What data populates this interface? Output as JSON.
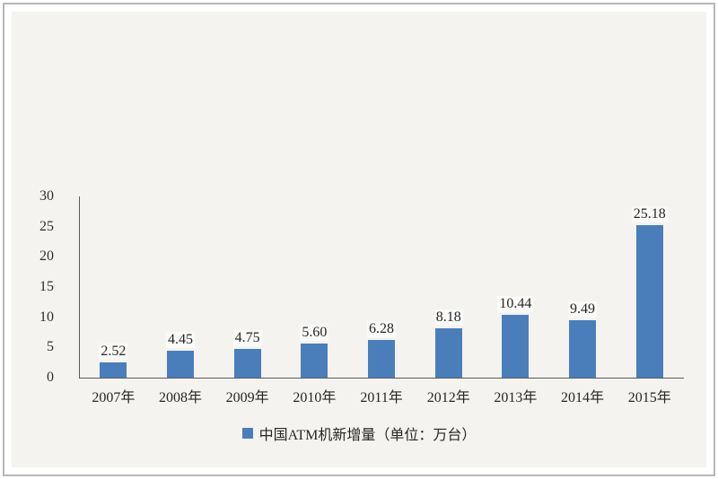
{
  "chart_data": {
    "type": "bar",
    "title": "",
    "xlabel": "",
    "ylabel": "",
    "categories": [
      "2007年",
      "2008年",
      "2009年",
      "2010年",
      "2011年",
      "2012年",
      "2013年",
      "2014年",
      "2015年"
    ],
    "values": [
      2.52,
      4.45,
      4.75,
      5.6,
      6.28,
      8.18,
      10.44,
      9.49,
      25.18
    ],
    "value_labels": [
      "2.52",
      "4.45",
      "4.75",
      "5.60",
      "6.28",
      "8.18",
      "10.44",
      "9.49",
      "25.18"
    ],
    "legend": "中国ATM机新增量（单位：万台）",
    "legend_position": "bottom",
    "ylim": [
      0,
      30
    ],
    "yticks": [
      0,
      5,
      10,
      15,
      20,
      25,
      30
    ],
    "grid": false,
    "bar_color": "#4a7ebb"
  },
  "colors": {
    "bar": "#4a7ebb",
    "panel_background": "#f4f3f0",
    "page_background": "#ffffff",
    "frame_border": "#b7b7b7",
    "axis_line": "#5a5a5a",
    "text": "#262626"
  }
}
